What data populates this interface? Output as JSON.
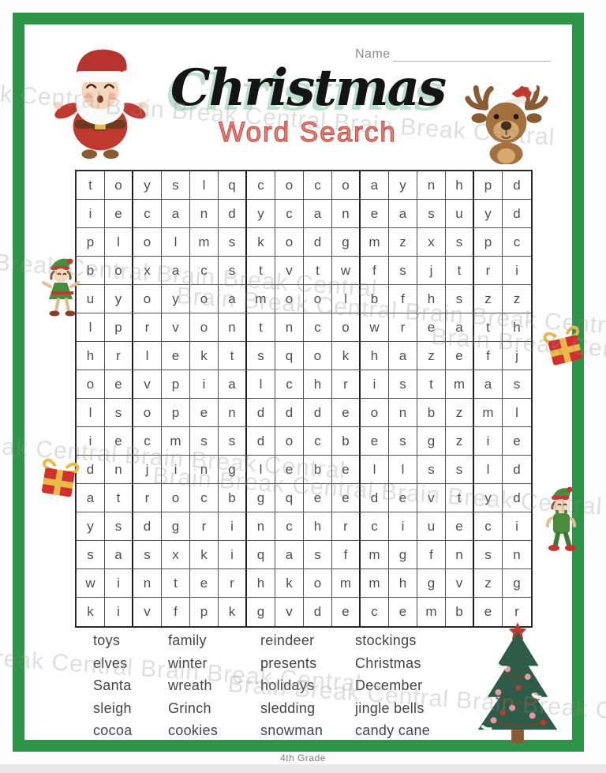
{
  "header": {
    "name_label": "Name",
    "title": "Christmas",
    "subtitle": "Word Search"
  },
  "watermark": {
    "text": "Brain Break Central"
  },
  "grid": {
    "rows": 16,
    "cols": 16,
    "letters": [
      "toyslqcocoaynhpd",
      "iecandycaneasuyd",
      "plolmskodgmzxspc",
      "boxacstvtwfsjtri",
      "uyoyoamoolbfhszz",
      "lprvontncowreath",
      "hrlektsqokhazefj",
      "oevpialchristmas",
      "lsopendddeonbzml",
      "iecmssdocbesgzie",
      "dnjinglebellssld",
      "atrocbgqeedevtyd",
      "ysdgrinchrciueci",
      "sasxkiqasfmgfnsn",
      "winterhkommhgvzg",
      "kivfpkgvdecember"
    ]
  },
  "word_list": {
    "columns": [
      [
        "toys",
        "elves",
        "Santa",
        "sleigh",
        "cocoa"
      ],
      [
        "family",
        "winter",
        "wreath",
        "Grinch",
        "cookies"
      ],
      [
        "reindeer",
        "presents",
        "holidays",
        "sledding",
        "snowman"
      ],
      [
        "stockings",
        "Christmas",
        "December",
        "jingle bells",
        "candy cane"
      ]
    ]
  },
  "footer": {
    "grade_label": "4th Grade"
  },
  "colors": {
    "frame_green": "#2e9447",
    "title_ink": "#141414",
    "title_shadow_mint": "#bcdfce",
    "subtitle_red": "#cc5048",
    "grid_letter": "#4f4f4f",
    "word_text": "#454545",
    "watermark_gray": "#8c8c8c"
  },
  "decorations": [
    "santa-illustration",
    "reindeer-illustration",
    "elf-left-illustration",
    "elf-right-illustration",
    "gift-left-illustration",
    "gift-right-illustration",
    "christmas-tree-illustration"
  ]
}
